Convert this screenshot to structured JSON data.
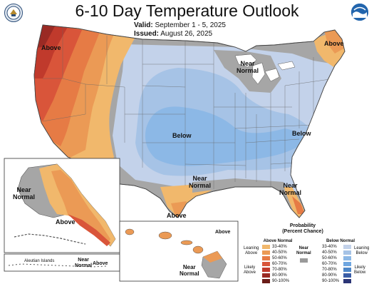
{
  "title": "6-10 Day Temperature Outlook",
  "valid_label": "Valid:",
  "valid_value": "September 1 - 5, 2025",
  "issued_label": "Issued:",
  "issued_value": "August 26, 2025",
  "logos": {
    "left": "doc-seal-icon",
    "right": "noaa-logo-icon",
    "noaa_text": "NOAA"
  },
  "map_labels": {
    "above_west": "Above",
    "above_northeast": "Above",
    "near_normal_lakes": "Near\nNormal",
    "below_central": "Below",
    "below_east": "Below",
    "near_normal_gulf": "Near\nNormal",
    "above_texas": "Above",
    "near_normal_florida": "Near\nNormal",
    "ak_near_normal": "Near\nNormal",
    "ak_above": "Above",
    "aleutian_label": "Aleutian Islands",
    "aleutian_near_normal": "Near\nNormal",
    "aleutian_above": "Above",
    "hi_above": "Above",
    "hi_near_normal": "Near\nNormal"
  },
  "legend": {
    "title": "Probability\n(Percent Chance)",
    "above_header": "Above Normal",
    "below_header": "Below Normal",
    "near_label": "Near\nNormal",
    "leaning_above": "Leaning\nAbove",
    "likely_above": "Likely\nAbove",
    "leaning_below": "Leaning\nBelow",
    "likely_below": "Likely\nBelow",
    "ranges": [
      "33-40%",
      "40-50%",
      "50-60%",
      "60-70%",
      "70-80%",
      "80-90%",
      "90-100%"
    ],
    "above_colors": [
      "#f1b86c",
      "#eb9a55",
      "#e67b45",
      "#d9553a",
      "#c03a2c",
      "#9a2a24",
      "#6a1c18"
    ],
    "below_colors": [
      "#c3d2ea",
      "#a6c3e6",
      "#8cb8e6",
      "#6fa6e0",
      "#4d86c8",
      "#3a5da6",
      "#2b3576"
    ],
    "near_color": "#9a9a9a"
  },
  "colors": {
    "near_normal": "#a6a6a6",
    "above_1": "#f1b86c",
    "above_2": "#eb9a55",
    "above_3": "#e67b45",
    "above_4": "#d9553a",
    "above_5": "#c03a2c",
    "above_6": "#9a2a24",
    "below_1": "#c3d2ea",
    "below_2": "#a6c3e6",
    "below_3": "#8cb8e6",
    "below_4": "#6fa6e0"
  }
}
